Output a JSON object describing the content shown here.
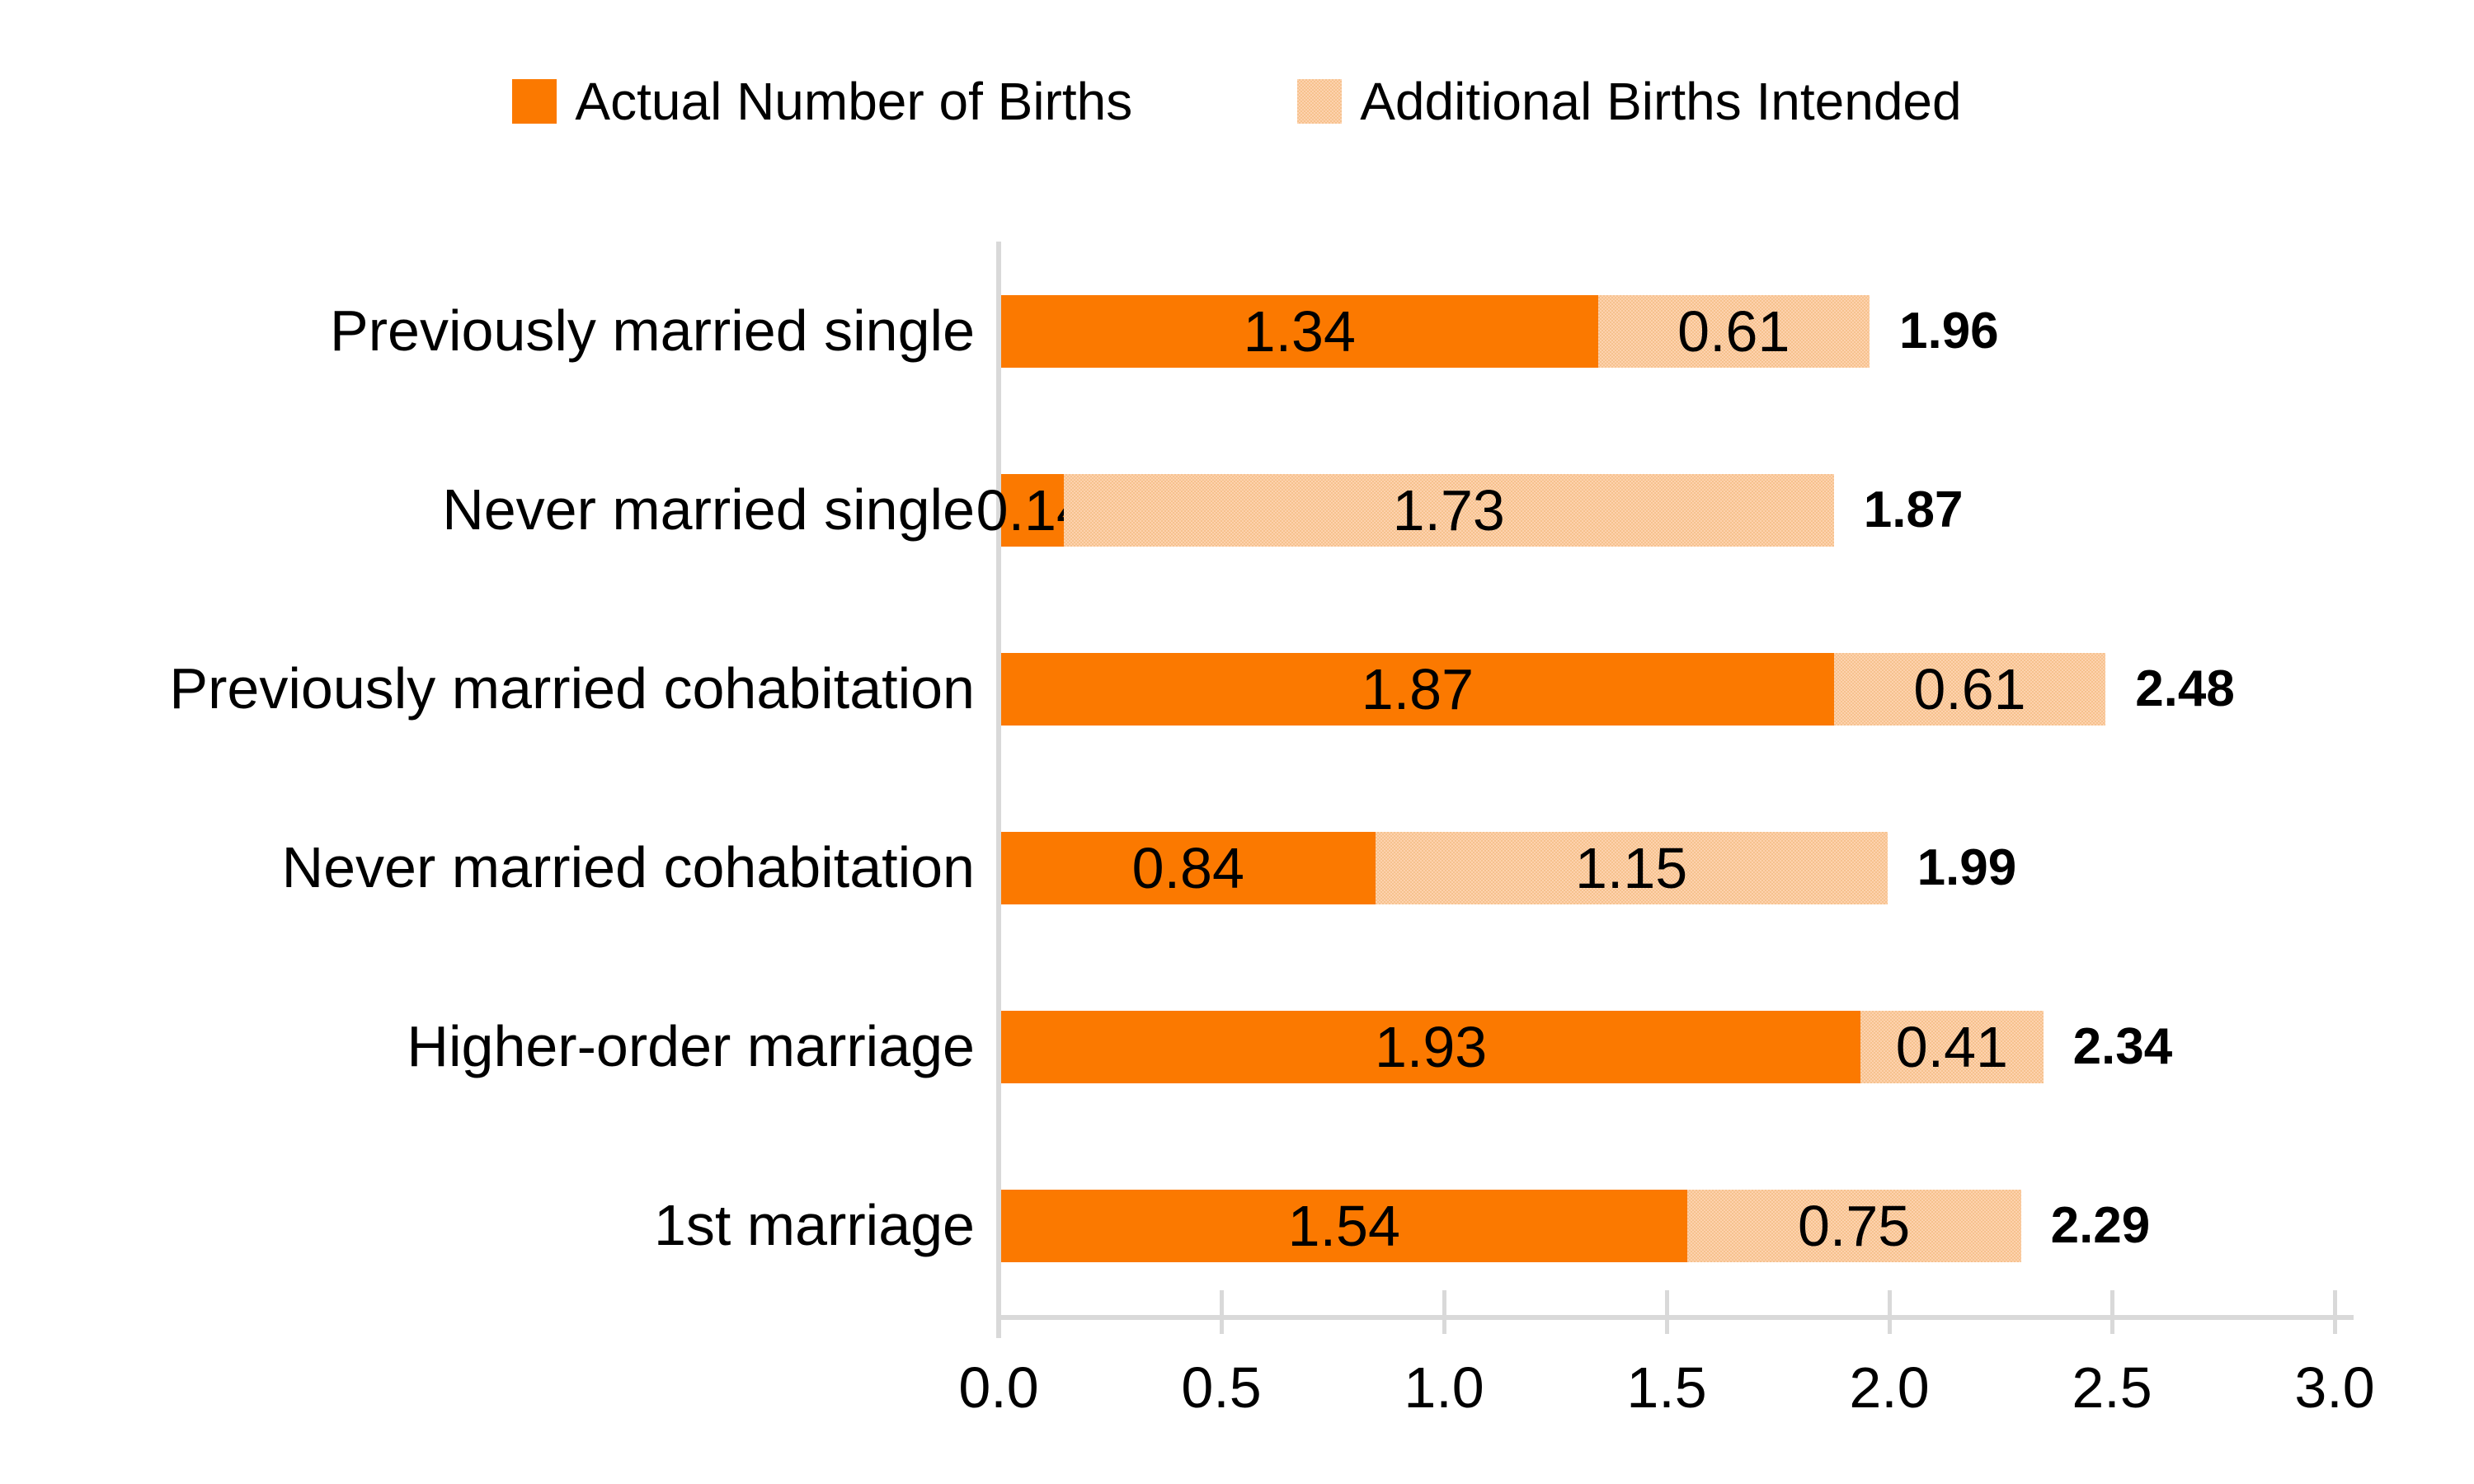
{
  "legend": [
    {
      "label": "Actual Number of Births",
      "color": "#FB7900"
    },
    {
      "label": "Additional Births Intended",
      "color": "#F9CBA0"
    }
  ],
  "chart_data": {
    "type": "bar",
    "orientation": "horizontal",
    "stacked": true,
    "title": "",
    "xlabel": "",
    "ylabel": "",
    "categories": [
      "Previously married single",
      "Never married single",
      "Previously married cohabitation",
      "Never married cohabitation",
      "Higher-order marriage",
      "1st marriage"
    ],
    "series": [
      {
        "name": "Actual Number of Births",
        "color": "#FB7900",
        "values": [
          1.34,
          0.14,
          1.87,
          0.84,
          1.93,
          1.54
        ],
        "labels": [
          "1.34",
          "0.14",
          "1.87",
          "0.84",
          "1.93",
          "1.54"
        ]
      },
      {
        "name": "Additional Births Intended",
        "color": "#F9CBA0",
        "values": [
          0.61,
          1.73,
          0.61,
          1.15,
          0.41,
          0.75
        ],
        "labels": [
          "0.61",
          "1.73",
          "0.61",
          "1.15",
          "0.41",
          "0.75"
        ]
      }
    ],
    "totals": [
      "1.96",
      "1.87",
      "2.48",
      "1.99",
      "2.34",
      "2.29"
    ],
    "x_ticks": [
      "0.0",
      "0.5",
      "1.0",
      "1.5",
      "2.0",
      "2.5",
      "3.0"
    ],
    "xlim": [
      0,
      3.0
    ],
    "grid": false,
    "legend_position": "top",
    "axis_color": "#D9D9D9"
  }
}
